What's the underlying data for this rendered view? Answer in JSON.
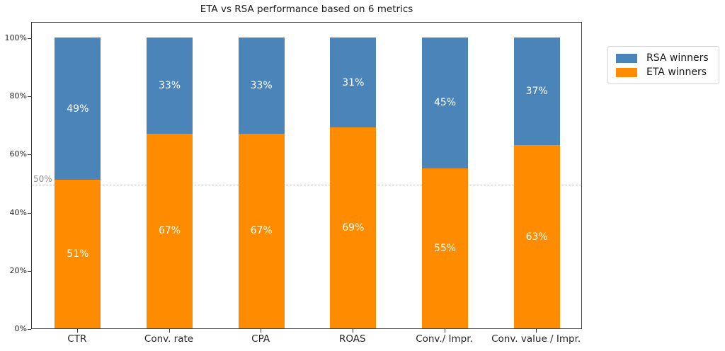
{
  "chart_data": {
    "type": "bar",
    "stacked": true,
    "title": "ETA vs RSA performance based on 6 metrics",
    "categories": [
      "CTR",
      "Conv. rate",
      "CPA",
      "ROAS",
      "Conv./ Impr.",
      "Conv. value / Impr."
    ],
    "series": [
      {
        "name": "ETA winners",
        "color": "#FF8C00",
        "position": "bottom",
        "values": [
          51,
          67,
          67,
          69,
          55,
          63
        ]
      },
      {
        "name": "RSA winners",
        "color": "#4A84B8",
        "position": "top",
        "values": [
          49,
          33,
          33,
          31,
          45,
          37
        ]
      }
    ],
    "value_label_suffix": "%",
    "value_label_color": "#ffffff",
    "xlabel": "",
    "ylabel": "",
    "y_ticks": [
      {
        "value": 0,
        "label": "0%"
      },
      {
        "value": 20,
        "label": "20%"
      },
      {
        "value": 40,
        "label": "40%"
      },
      {
        "value": 60,
        "label": "60%"
      },
      {
        "value": 80,
        "label": "80%"
      },
      {
        "value": 100,
        "label": "100%"
      }
    ],
    "ylim": [
      0,
      105
    ],
    "grid": "off",
    "reference_line": {
      "value": 50,
      "label": "50%",
      "color": "#C4C4C4",
      "label_color": "#8C8C8C",
      "style": "dashed"
    },
    "legend": {
      "position": "outside-upper-right",
      "entries": [
        {
          "label": "RSA winners",
          "color": "#4A84B8"
        },
        {
          "label": "ETA winners",
          "color": "#FF8C00"
        }
      ]
    }
  }
}
